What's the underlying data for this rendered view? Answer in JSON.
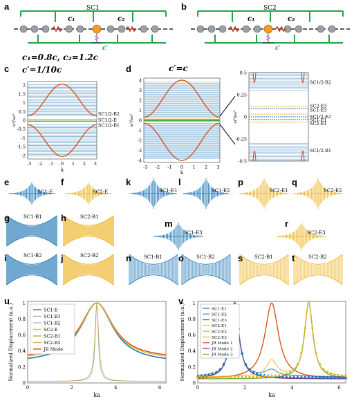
{
  "panels": {
    "a": "a",
    "b": "b",
    "c": "c",
    "d": "d",
    "e": "e",
    "f": "f",
    "g": "g",
    "h": "h",
    "i": "i",
    "j": "j",
    "k": "k",
    "l": "l",
    "m": "m",
    "n": "n",
    "o": "o",
    "p": "p",
    "q": "q",
    "r": "r",
    "s": "s",
    "t": "t",
    "u": "u",
    "v": "v"
  },
  "schematic": {
    "sc1_title": "SC1",
    "sc2_title": "SC2",
    "c1": "c₁",
    "c2": "c₂",
    "cprime": "c′"
  },
  "params": {
    "c1c2": "c₁=0.8c, c₂=1.2c",
    "cprime_c": "c′=1/10c",
    "cprime_d": "c′=c"
  },
  "band_labels": {
    "c": [
      "SC1/2-B2",
      "SC1/2-E",
      "SC1/2-B1"
    ],
    "d_zoom": [
      "SC1/2-B2",
      "SC2-E3",
      "SC1-E3",
      "SC1/2-E2",
      "SC1-E1",
      "SC2-E1",
      "SC1/2-B1"
    ]
  },
  "mode_labels": {
    "e": "SC1-E",
    "f": "SC2-E",
    "g": "SC1-B1",
    "h": "SC2-B1",
    "i": "SC1-B2",
    "j": "SC2-B2",
    "k": "SC1-E1",
    "l": "SC1-E2",
    "m": "SC1-E3",
    "p": "SC2-E1",
    "q": "SC2-E2",
    "r": "SC2-E3",
    "n": "SC1-B1",
    "o": "SC1-B2",
    "s": "SC2-B1",
    "t": "SC2-B2"
  },
  "axes": {
    "c_y": [
      "2",
      "1.5",
      "1",
      "0.5",
      "0",
      "-0.5",
      "-1",
      "-1.5",
      "-2"
    ],
    "k_x": [
      "-3",
      "-2",
      "-1",
      "0",
      "1",
      "2",
      "3"
    ],
    "d_y": [
      "4",
      "3",
      "2",
      "1",
      "0",
      "-1",
      "-2",
      "-3",
      "-4"
    ],
    "zoom_y": [
      "0.5",
      "0.25",
      "0",
      "-0.25",
      "-0.5"
    ],
    "u_y": [
      "0",
      "0.2",
      "0.4",
      "0.6",
      "0.8",
      "1"
    ],
    "ka_x": [
      "0",
      "2",
      "4",
      "6"
    ],
    "ylabel_omega": "ω²/ω₀²",
    "xlabel_k": "k",
    "ylabel_u": "Normalized Displacement (a.u.)",
    "xlabel_ka": "ka"
  },
  "legend_u": [
    "SC1-E",
    "SC1-B1",
    "SC1-B2",
    "SC2-E",
    "SC2-B1",
    "SC2-B2",
    "JR Mode"
  ],
  "legend_v": [
    "SC1-E1",
    "SC1-E2",
    "SC1-E3",
    "SC2-E1",
    "SC2-E2",
    "SC2-E3",
    "JR Mode 1",
    "JR Mode 2",
    "JR Mode 3"
  ],
  "colors": {
    "blue": "#1f77b4",
    "orange": "#d95319",
    "gold": "#edb120",
    "green": "#2ca02c",
    "purple": "#7e2f8e",
    "lightgreen": "#77ac30"
  }
}
